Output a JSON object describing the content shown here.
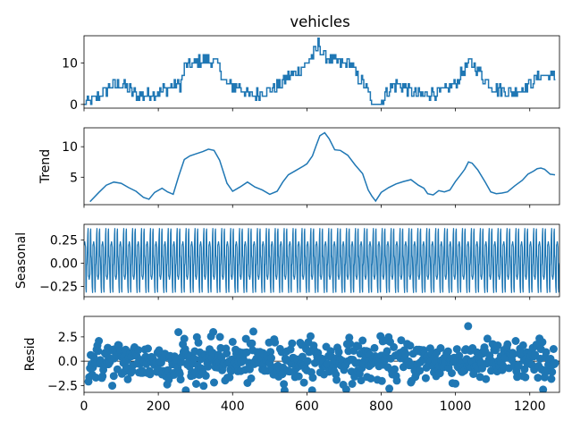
{
  "chart_data": {
    "type": "line",
    "title": "vehicles",
    "xlabel": "",
    "xlim": [
      0,
      1280
    ],
    "xticks": [
      0,
      200,
      400,
      600,
      800,
      1000,
      1200
    ],
    "xtick_labels": [
      "0",
      "200",
      "400",
      "600",
      "800",
      "1000",
      "1200"
    ],
    "color": "#1f77b4",
    "panels": [
      {
        "name": "observed",
        "ylabel": "",
        "type": "line",
        "ylim": [
          -0.9,
          16.6
        ],
        "yticks": [
          0,
          10
        ],
        "ytick_labels": [
          "0",
          "10"
        ],
        "x": [
          0,
          40,
          65,
          100,
          145,
          200,
          260,
          270,
          300,
          330,
          350,
          365,
          380,
          420,
          450,
          480,
          515,
          540,
          575,
          600,
          625,
          632,
          640,
          665,
          690,
          715,
          740,
          760,
          775,
          795,
          820,
          845,
          880,
          910,
          935,
          960,
          1000,
          1020,
          1040,
          1055,
          1075,
          1100,
          1140,
          1160,
          1185,
          1210,
          1230,
          1255,
          1270
        ],
        "y": [
          0,
          2,
          4,
          5,
          2,
          3,
          5,
          9,
          10,
          11,
          10,
          9,
          5,
          4,
          2,
          3,
          4,
          6,
          8,
          10,
          13,
          15,
          12,
          11,
          10,
          10,
          6,
          4,
          0,
          0,
          4,
          5,
          3,
          2,
          3,
          3,
          5,
          8,
          10,
          9,
          6,
          4,
          3,
          3,
          4,
          6,
          7,
          7,
          6
        ],
        "noise_amplitude": 1.2
      },
      {
        "name": "trend",
        "ylabel": "Trend",
        "type": "line",
        "ylim": [
          0.5,
          13.1
        ],
        "yticks": [
          5,
          10
        ],
        "ytick_labels": [
          "5",
          "10"
        ],
        "x": [
          16,
          40,
          60,
          80,
          100,
          120,
          140,
          160,
          175,
          190,
          210,
          225,
          240,
          255,
          270,
          285,
          300,
          320,
          335,
          350,
          365,
          385,
          400,
          420,
          440,
          460,
          480,
          500,
          520,
          535,
          550,
          570,
          590,
          600,
          615,
          625,
          635,
          648,
          660,
          675,
          690,
          710,
          730,
          750,
          765,
          775,
          785,
          800,
          820,
          840,
          860,
          880,
          900,
          915,
          925,
          940,
          955,
          970,
          985,
          1000,
          1015,
          1025,
          1035,
          1045,
          1060,
          1080,
          1095,
          1110,
          1125,
          1140,
          1160,
          1180,
          1195,
          1210,
          1220,
          1230,
          1240,
          1255,
          1268
        ],
        "y": [
          1.0,
          2.5,
          3.7,
          4.2,
          4.0,
          3.3,
          2.7,
          1.7,
          1.4,
          2.5,
          3.2,
          2.6,
          2.2,
          5.2,
          7.9,
          8.5,
          8.8,
          9.2,
          9.6,
          9.4,
          7.8,
          4.0,
          2.7,
          3.4,
          4.2,
          3.4,
          2.9,
          2.2,
          2.7,
          4.2,
          5.4,
          6.1,
          6.8,
          7.2,
          8.5,
          10.2,
          11.8,
          12.3,
          11.3,
          9.5,
          9.4,
          8.6,
          7.0,
          5.6,
          2.9,
          1.9,
          1.1,
          2.5,
          3.3,
          3.9,
          4.3,
          4.6,
          3.7,
          3.2,
          2.3,
          2.1,
          2.8,
          2.6,
          2.9,
          4.3,
          5.5,
          6.3,
          7.5,
          7.3,
          6.2,
          4.2,
          2.6,
          2.3,
          2.4,
          2.6,
          3.6,
          4.5,
          5.5,
          6.0,
          6.4,
          6.5,
          6.3,
          5.5,
          5.4
        ],
        "noise_amplitude": 0
      },
      {
        "name": "seasonal",
        "ylabel": "Seasonal",
        "type": "line",
        "ylim": [
          -0.36,
          0.42
        ],
        "yticks": [
          -0.25,
          0.0,
          0.25
        ],
        "ytick_labels": [
          "−0.25",
          "0.00",
          "0.25"
        ],
        "period": 24,
        "amplitude": [
          -0.32,
          0.38
        ],
        "noise_amplitude": 0
      },
      {
        "name": "resid",
        "ylabel": "Resid",
        "type": "scatter",
        "ylim": [
          -3.2,
          4.6
        ],
        "yticks": [
          -2.5,
          0.0,
          2.5
        ],
        "ytick_labels": [
          "−2.5",
          "0.0",
          "2.5"
        ],
        "spread": 1.1,
        "baseline": 0.0,
        "marker_size": 6
      }
    ]
  }
}
